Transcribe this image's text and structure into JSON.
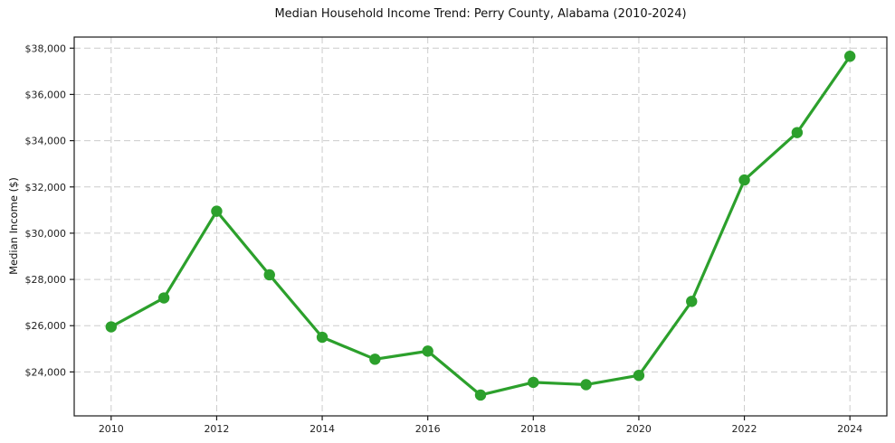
{
  "chart_data": {
    "type": "line",
    "title": "Median Household Income Trend: Perry County, Alabama (2010-2024)",
    "xlabel": "",
    "ylabel": "Median Income ($)",
    "x": [
      2010,
      2011,
      2012,
      2013,
      2014,
      2015,
      2016,
      2017,
      2018,
      2019,
      2020,
      2021,
      2022,
      2023,
      2024
    ],
    "values": [
      25950,
      27200,
      30950,
      28200,
      25500,
      24550,
      24900,
      23000,
      23550,
      23450,
      23850,
      27050,
      32300,
      34350,
      37650
    ],
    "xlim": [
      2009.3,
      2024.7
    ],
    "ylim": [
      22100,
      38480
    ],
    "xticks": {
      "values": [
        2010,
        2012,
        2014,
        2016,
        2018,
        2020,
        2022,
        2024
      ],
      "labels": [
        "2010",
        "2012",
        "2014",
        "2016",
        "2018",
        "2020",
        "2022",
        "2024"
      ]
    },
    "yticks": {
      "values": [
        24000,
        26000,
        28000,
        30000,
        32000,
        34000,
        36000,
        38000
      ],
      "labels": [
        "$24,000",
        "$26,000",
        "$28,000",
        "$30,000",
        "$32,000",
        "$34,000",
        "$36,000",
        "$38,000"
      ]
    },
    "grid": true,
    "grid_style": "dashed",
    "legend": "none",
    "style": {
      "line_color": "#2ca02c",
      "marker": "circle",
      "marker_radius": 6.2,
      "line_width": 3.2,
      "grid_color": "#cccccc",
      "frame_color": "#1a1a1a",
      "tick_label_color": "#1f1f1f",
      "background": "#ffffff"
    }
  }
}
